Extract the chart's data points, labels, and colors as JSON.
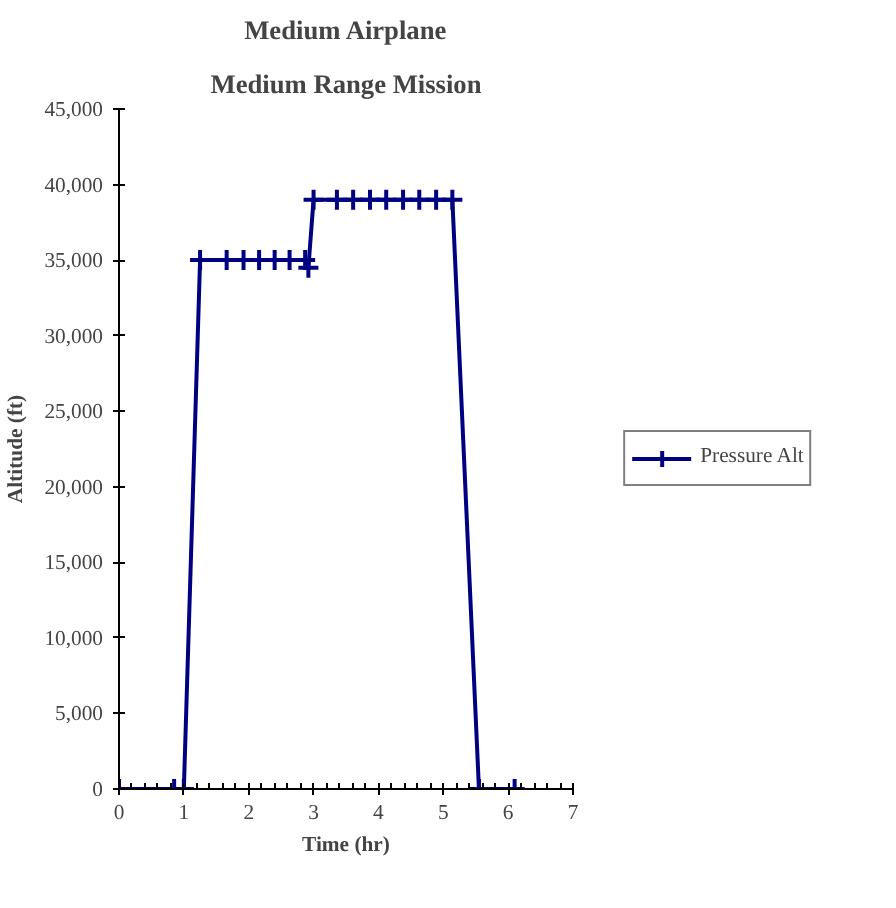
{
  "chart_data": {
    "type": "line",
    "title": "Medium Airplane",
    "subtitle": "Medium Range Mission",
    "xlabel": "Time (hr)",
    "ylabel": "Altitude (ft)",
    "series": [
      {
        "name": "Pressure Alt",
        "color": "#000080",
        "x": [
          0,
          0.85,
          1.0,
          1.25,
          1.66,
          1.92,
          2.16,
          2.4,
          2.63,
          2.87,
          2.92,
          3.0,
          3.36,
          3.61,
          3.87,
          4.12,
          4.38,
          4.63,
          4.89,
          5.14,
          5.55,
          6.1
        ],
        "values": [
          0,
          0,
          0,
          35000,
          35000,
          35000,
          35000,
          35000,
          35000,
          35000,
          34500,
          39000,
          39000,
          39000,
          39000,
          39000,
          39000,
          39000,
          39000,
          39000,
          0,
          0
        ]
      }
    ],
    "xlim": [
      0,
      7
    ],
    "xticks": [
      0,
      1,
      2,
      3,
      4,
      5,
      6,
      7
    ],
    "ylim": [
      0,
      45000
    ],
    "yticks": [
      {
        "value": 0,
        "label": "0"
      },
      {
        "value": 5000,
        "label": "5,000"
      },
      {
        "value": 10000,
        "label": "10,000"
      },
      {
        "value": 15000,
        "label": "15,000"
      },
      {
        "value": 20000,
        "label": "20,000"
      },
      {
        "value": 25000,
        "label": "25,000"
      },
      {
        "value": 30000,
        "label": "30,000"
      },
      {
        "value": 35000,
        "label": "35,000"
      },
      {
        "value": 40000,
        "label": "40,000"
      },
      {
        "value": 45000,
        "label": "45,000"
      }
    ],
    "grid": false,
    "legend": "right",
    "marker": "cross",
    "line_style": "solid"
  }
}
